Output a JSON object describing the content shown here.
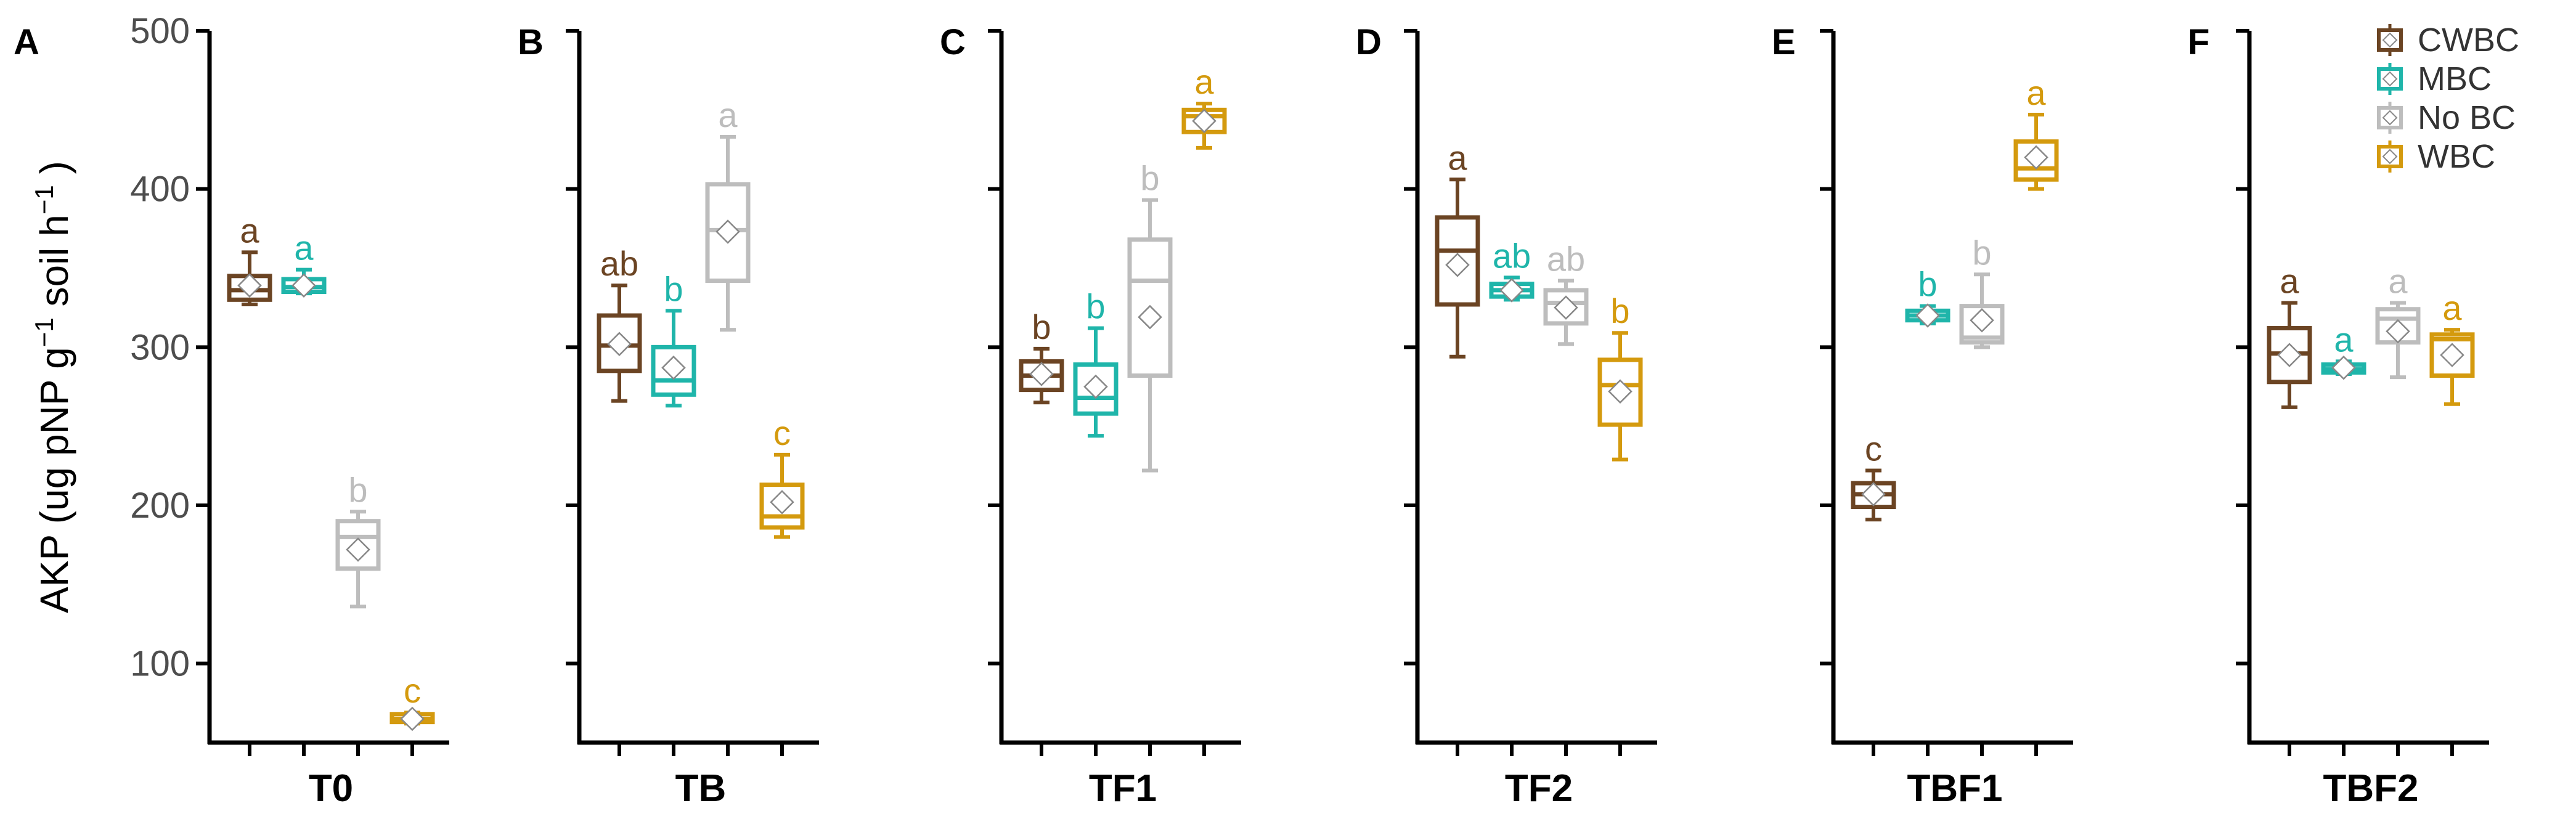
{
  "chart_data": {
    "type": "boxplot",
    "ylabel": "AKP (ug pNP g",
    "ylabel_sup1": "−1",
    "ylabel_mid": " soil h",
    "ylabel_sup2": "−1",
    "ylabel_end": " )",
    "ylim": [
      50,
      500
    ],
    "yticks": [
      100,
      200,
      300,
      400,
      500
    ],
    "series": [
      {
        "name": "CWBC",
        "color": "#6b4423"
      },
      {
        "name": "MBC",
        "color": "#1fb5aa"
      },
      {
        "name": "No BC",
        "color": "#bdbdbd"
      },
      {
        "name": "WBC",
        "color": "#d49a0e"
      }
    ],
    "panels": [
      {
        "letter": "A",
        "label": "T0",
        "boxes": [
          {
            "series": "CWBC",
            "min": 327,
            "q1": 330,
            "median": 336,
            "q3": 345,
            "max": 360,
            "mean": 339,
            "letter": "a"
          },
          {
            "series": "MBC",
            "min": 334,
            "q1": 335,
            "median": 338,
            "q3": 343,
            "max": 349,
            "mean": 339,
            "letter": "a"
          },
          {
            "series": "No BC",
            "min": 136,
            "q1": 160,
            "median": 180,
            "q3": 190,
            "max": 196,
            "mean": 172,
            "letter": "b"
          },
          {
            "series": "WBC",
            "min": 62,
            "q1": 63,
            "median": 65,
            "q3": 68,
            "max": 69,
            "mean": 65,
            "letter": "c"
          }
        ]
      },
      {
        "letter": "B",
        "label": "TB",
        "boxes": [
          {
            "series": "CWBC",
            "min": 266,
            "q1": 285,
            "median": 301,
            "q3": 320,
            "max": 339,
            "mean": 302,
            "letter": "ab"
          },
          {
            "series": "MBC",
            "min": 263,
            "q1": 270,
            "median": 279,
            "q3": 300,
            "max": 323,
            "mean": 287,
            "letter": "b"
          },
          {
            "series": "No BC",
            "min": 311,
            "q1": 342,
            "median": 374,
            "q3": 403,
            "max": 433,
            "mean": 373,
            "letter": "a"
          },
          {
            "series": "WBC",
            "min": 180,
            "q1": 186,
            "median": 193,
            "q3": 213,
            "max": 232,
            "mean": 202,
            "letter": "c"
          }
        ]
      },
      {
        "letter": "C",
        "label": "TF1",
        "boxes": [
          {
            "series": "CWBC",
            "min": 265,
            "q1": 273,
            "median": 282,
            "q3": 291,
            "max": 299,
            "mean": 283,
            "letter": "b"
          },
          {
            "series": "MBC",
            "min": 244,
            "q1": 258,
            "median": 268,
            "q3": 289,
            "max": 312,
            "mean": 275,
            "letter": "b"
          },
          {
            "series": "No BC",
            "min": 222,
            "q1": 282,
            "median": 342,
            "q3": 368,
            "max": 393,
            "mean": 319,
            "letter": "b"
          },
          {
            "series": "WBC",
            "min": 426,
            "q1": 436,
            "median": 446,
            "q3": 450,
            "max": 454,
            "mean": 443,
            "letter": "a"
          }
        ]
      },
      {
        "letter": "D",
        "label": "TF2",
        "boxes": [
          {
            "series": "CWBC",
            "min": 294,
            "q1": 327,
            "median": 361,
            "q3": 382,
            "max": 406,
            "mean": 352,
            "letter": "a"
          },
          {
            "series": "MBC",
            "min": 330,
            "q1": 332,
            "median": 336,
            "q3": 340,
            "max": 344,
            "mean": 336,
            "letter": "ab"
          },
          {
            "series": "No BC",
            "min": 302,
            "q1": 315,
            "median": 328,
            "q3": 336,
            "max": 342,
            "mean": 325,
            "letter": "ab"
          },
          {
            "series": "WBC",
            "min": 229,
            "q1": 251,
            "median": 276,
            "q3": 292,
            "max": 309,
            "mean": 272,
            "letter": "b"
          }
        ]
      },
      {
        "letter": "E",
        "label": "TBF1",
        "boxes": [
          {
            "series": "CWBC",
            "min": 191,
            "q1": 199,
            "median": 207,
            "q3": 214,
            "max": 222,
            "mean": 207,
            "letter": "c"
          },
          {
            "series": "MBC",
            "min": 315,
            "q1": 317,
            "median": 320,
            "q3": 323,
            "max": 326,
            "mean": 320,
            "letter": "b"
          },
          {
            "series": "No BC",
            "min": 300,
            "q1": 303,
            "median": 306,
            "q3": 326,
            "max": 346,
            "mean": 317,
            "letter": "b"
          },
          {
            "series": "WBC",
            "min": 400,
            "q1": 406,
            "median": 413,
            "q3": 430,
            "max": 447,
            "mean": 420,
            "letter": "a"
          }
        ]
      },
      {
        "letter": "F",
        "label": "TBF2",
        "boxes": [
          {
            "series": "CWBC",
            "min": 262,
            "q1": 278,
            "median": 296,
            "q3": 312,
            "max": 328,
            "mean": 295,
            "letter": "a"
          },
          {
            "series": "MBC",
            "min": 283,
            "q1": 284,
            "median": 286,
            "q3": 289,
            "max": 291,
            "mean": 287,
            "letter": "a"
          },
          {
            "series": "No BC",
            "min": 281,
            "q1": 303,
            "median": 318,
            "q3": 324,
            "max": 328,
            "mean": 310,
            "letter": "a"
          },
          {
            "series": "WBC",
            "min": 264,
            "q1": 282,
            "median": 305,
            "q3": 308,
            "max": 311,
            "mean": 295,
            "letter": "a"
          }
        ]
      }
    ]
  }
}
